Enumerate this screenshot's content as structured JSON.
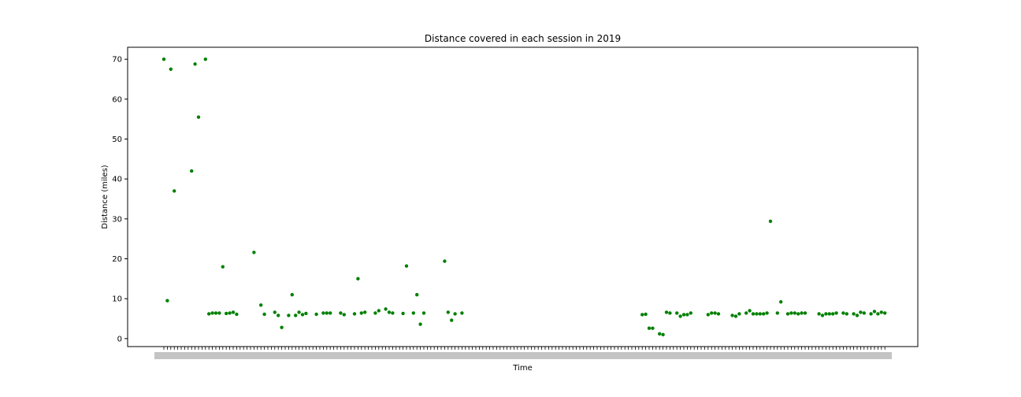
{
  "chart_data": {
    "type": "scatter",
    "title": "Distance covered in each session in 2019",
    "xlabel": "Time",
    "ylabel": "Distance (miles)",
    "ylim": [
      -2,
      73
    ],
    "yticks": [
      0,
      10,
      20,
      30,
      40,
      50,
      60,
      70
    ],
    "marker_color": "#008000",
    "grid": false,
    "legend": "none",
    "x_tick_note": "Dense overlapping date tick labels along the x-axis are illegible in the source image.",
    "points": [
      {
        "x": 0,
        "y": 70.0
      },
      {
        "x": 1,
        "y": 9.5
      },
      {
        "x": 2,
        "y": 67.5
      },
      {
        "x": 3,
        "y": 37.0
      },
      {
        "x": 8,
        "y": 42.0
      },
      {
        "x": 9,
        "y": 68.8
      },
      {
        "x": 10,
        "y": 55.5
      },
      {
        "x": 12,
        "y": 70.0
      },
      {
        "x": 13,
        "y": 6.2
      },
      {
        "x": 14,
        "y": 6.4
      },
      {
        "x": 15,
        "y": 6.4
      },
      {
        "x": 16,
        "y": 6.4
      },
      {
        "x": 17,
        "y": 18.0
      },
      {
        "x": 18,
        "y": 6.3
      },
      {
        "x": 19,
        "y": 6.4
      },
      {
        "x": 20,
        "y": 6.6
      },
      {
        "x": 21,
        "y": 6.1
      },
      {
        "x": 26,
        "y": 21.6
      },
      {
        "x": 28,
        "y": 8.4
      },
      {
        "x": 29,
        "y": 6.1
      },
      {
        "x": 32,
        "y": 6.6
      },
      {
        "x": 33,
        "y": 5.8
      },
      {
        "x": 34,
        "y": 2.8
      },
      {
        "x": 36,
        "y": 5.8
      },
      {
        "x": 37,
        "y": 11.0
      },
      {
        "x": 38,
        "y": 5.8
      },
      {
        "x": 39,
        "y": 6.6
      },
      {
        "x": 40,
        "y": 6.0
      },
      {
        "x": 41,
        "y": 6.3
      },
      {
        "x": 44,
        "y": 6.1
      },
      {
        "x": 46,
        "y": 6.4
      },
      {
        "x": 47,
        "y": 6.4
      },
      {
        "x": 48,
        "y": 6.4
      },
      {
        "x": 51,
        "y": 6.4
      },
      {
        "x": 52,
        "y": 6.0
      },
      {
        "x": 55,
        "y": 6.2
      },
      {
        "x": 56,
        "y": 15.0
      },
      {
        "x": 57,
        "y": 6.4
      },
      {
        "x": 58,
        "y": 6.6
      },
      {
        "x": 61,
        "y": 6.4
      },
      {
        "x": 62,
        "y": 7.0
      },
      {
        "x": 64,
        "y": 7.4
      },
      {
        "x": 65,
        "y": 6.6
      },
      {
        "x": 66,
        "y": 6.4
      },
      {
        "x": 69,
        "y": 6.3
      },
      {
        "x": 70,
        "y": 18.2
      },
      {
        "x": 72,
        "y": 6.4
      },
      {
        "x": 73,
        "y": 11.0
      },
      {
        "x": 74,
        "y": 3.6
      },
      {
        "x": 75,
        "y": 6.4
      },
      {
        "x": 81,
        "y": 19.4
      },
      {
        "x": 82,
        "y": 6.6
      },
      {
        "x": 83,
        "y": 4.6
      },
      {
        "x": 84,
        "y": 6.2
      },
      {
        "x": 86,
        "y": 6.4
      },
      {
        "x": 138,
        "y": 6.0
      },
      {
        "x": 139,
        "y": 6.1
      },
      {
        "x": 140,
        "y": 2.6
      },
      {
        "x": 141,
        "y": 2.6
      },
      {
        "x": 143,
        "y": 1.2
      },
      {
        "x": 144,
        "y": 1.0
      },
      {
        "x": 145,
        "y": 6.6
      },
      {
        "x": 146,
        "y": 6.4
      },
      {
        "x": 148,
        "y": 6.4
      },
      {
        "x": 149,
        "y": 5.6
      },
      {
        "x": 150,
        "y": 6.0
      },
      {
        "x": 151,
        "y": 6.0
      },
      {
        "x": 152,
        "y": 6.4
      },
      {
        "x": 157,
        "y": 6.0
      },
      {
        "x": 158,
        "y": 6.4
      },
      {
        "x": 159,
        "y": 6.4
      },
      {
        "x": 160,
        "y": 6.2
      },
      {
        "x": 164,
        "y": 5.8
      },
      {
        "x": 165,
        "y": 5.6
      },
      {
        "x": 166,
        "y": 6.2
      },
      {
        "x": 168,
        "y": 6.4
      },
      {
        "x": 169,
        "y": 7.0
      },
      {
        "x": 170,
        "y": 6.2
      },
      {
        "x": 171,
        "y": 6.2
      },
      {
        "x": 172,
        "y": 6.2
      },
      {
        "x": 173,
        "y": 6.2
      },
      {
        "x": 174,
        "y": 6.4
      },
      {
        "x": 175,
        "y": 29.4
      },
      {
        "x": 177,
        "y": 6.4
      },
      {
        "x": 178,
        "y": 9.2
      },
      {
        "x": 180,
        "y": 6.2
      },
      {
        "x": 181,
        "y": 6.4
      },
      {
        "x": 182,
        "y": 6.4
      },
      {
        "x": 183,
        "y": 6.2
      },
      {
        "x": 184,
        "y": 6.4
      },
      {
        "x": 185,
        "y": 6.4
      },
      {
        "x": 189,
        "y": 6.2
      },
      {
        "x": 190,
        "y": 5.8
      },
      {
        "x": 191,
        "y": 6.2
      },
      {
        "x": 192,
        "y": 6.2
      },
      {
        "x": 193,
        "y": 6.2
      },
      {
        "x": 194,
        "y": 6.4
      },
      {
        "x": 196,
        "y": 6.4
      },
      {
        "x": 197,
        "y": 6.2
      },
      {
        "x": 199,
        "y": 6.2
      },
      {
        "x": 200,
        "y": 5.8
      },
      {
        "x": 201,
        "y": 6.6
      },
      {
        "x": 202,
        "y": 6.4
      },
      {
        "x": 204,
        "y": 6.2
      },
      {
        "x": 205,
        "y": 6.8
      },
      {
        "x": 206,
        "y": 6.2
      },
      {
        "x": 207,
        "y": 6.6
      },
      {
        "x": 208,
        "y": 6.4
      }
    ]
  }
}
